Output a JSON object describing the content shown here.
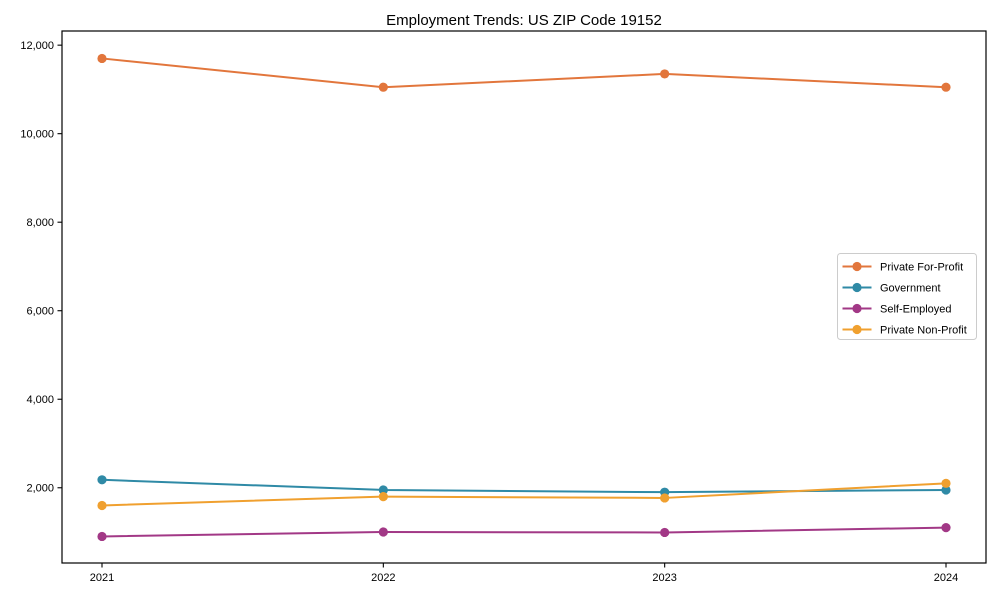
{
  "chart_data": {
    "type": "line",
    "title": "Employment Trends: US ZIP Code 19152",
    "categories": [
      "2021",
      "2022",
      "2023",
      "2024"
    ],
    "series": [
      {
        "name": "Private For-Profit",
        "color": "#e2763c",
        "values": [
          11700,
          11050,
          11350,
          11050
        ]
      },
      {
        "name": "Government",
        "color": "#2f8aa6",
        "values": [
          2180,
          1950,
          1900,
          1950
        ]
      },
      {
        "name": "Self-Employed",
        "color": "#a23886",
        "values": [
          900,
          1000,
          990,
          1100
        ]
      },
      {
        "name": "Private Non-Profit",
        "color": "#f0a02f",
        "values": [
          1600,
          1800,
          1770,
          2100
        ]
      }
    ],
    "xlabel": "",
    "ylabel": "",
    "ylim": [
      300,
      12320
    ],
    "y_ticks": {
      "values": [
        2000,
        4000,
        6000,
        8000,
        10000,
        12000
      ],
      "labels": [
        "2,000",
        "4,000",
        "6,000",
        "8,000",
        "10,000",
        "12,000"
      ]
    },
    "grid": false,
    "marker": "circle",
    "axis_color": "#000000",
    "legend": {
      "position": "center-right",
      "border_color": "#cccccc",
      "background": "#ffffff"
    }
  }
}
